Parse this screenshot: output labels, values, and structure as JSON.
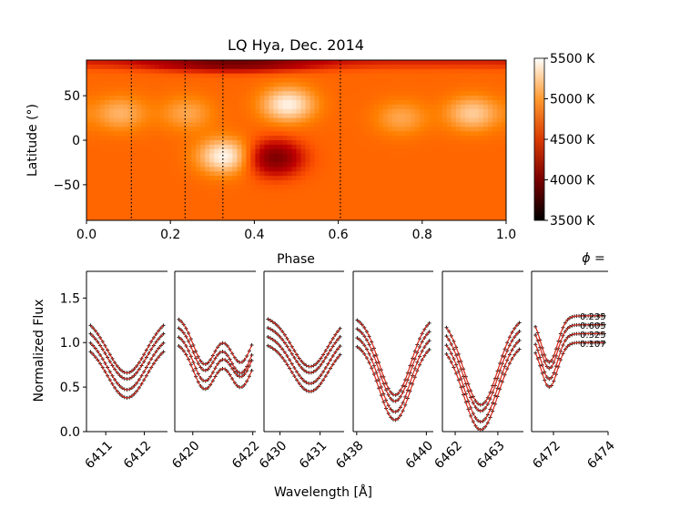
{
  "chart_data": [
    {
      "type": "heatmap",
      "title": "LQ Hya, Dec. 2014",
      "xlabel": "Phase",
      "ylabel": "Latitude (°)",
      "xlim": [
        0.0,
        1.0
      ],
      "ylim": [
        -90,
        90
      ],
      "x_ticks": [
        "0.0",
        "0.2",
        "0.4",
        "0.6",
        "0.8",
        "1.0"
      ],
      "x_tick_values": [
        0.0,
        0.2,
        0.4,
        0.6,
        0.8,
        1.0
      ],
      "y_ticks": [
        "50",
        "0",
        "−50"
      ],
      "y_tick_values": [
        50,
        0,
        -50
      ],
      "observed_phases": [
        0.107,
        0.235,
        0.325,
        0.605
      ],
      "colorbar": {
        "label_unit": "K",
        "ticks": [
          "5500 K",
          "5000 K",
          "4500 K",
          "4000 K",
          "3500 K"
        ],
        "tick_values": [
          5500,
          5000,
          4500,
          4000,
          3500
        ],
        "range": [
          3500,
          5500
        ]
      },
      "background_temperature": 4900,
      "features": [
        {
          "type": "cool",
          "phase": 0.45,
          "latitude": -20,
          "temperature": 4150
        },
        {
          "type": "cool",
          "phase": 0.35,
          "latitude": 85,
          "temperature": 4300
        },
        {
          "type": "hot",
          "phase": 0.33,
          "latitude": -18,
          "temperature": 5480
        },
        {
          "type": "hot",
          "phase": 0.48,
          "latitude": 40,
          "temperature": 5450
        },
        {
          "type": "hot",
          "phase": 0.08,
          "latitude": 30,
          "temperature": 5200
        },
        {
          "type": "hot",
          "phase": 0.24,
          "latitude": 30,
          "temperature": 5150
        },
        {
          "type": "hot",
          "phase": 0.92,
          "latitude": 30,
          "temperature": 5300
        },
        {
          "type": "hot",
          "phase": 0.75,
          "latitude": 25,
          "temperature": 5150
        }
      ]
    },
    {
      "type": "line",
      "xlabel": "Wavelength [Å]",
      "ylabel": "Normalized Flux",
      "ylim": [
        0.0,
        1.8
      ],
      "y_ticks": [
        "0.0",
        "0.5",
        "1.0",
        "1.5"
      ],
      "y_tick_values": [
        0.0,
        0.5,
        1.0,
        1.5
      ],
      "phi_label": "ϕ =",
      "phase_labels": [
        "0.235",
        "0.605",
        "0.325",
        "0.107"
      ],
      "offsets": [
        0.3,
        0.2,
        0.1,
        0.0
      ],
      "panels": [
        {
          "name": "6411",
          "xlim": [
            6410.5,
            6412.6
          ],
          "ticks": [
            "6411",
            "6412"
          ],
          "tick_values": [
            6411,
            6412
          ],
          "center": 6411.55,
          "width": 0.5,
          "depth": 0.62
        },
        {
          "name": "6420",
          "xlim": [
            6419.4,
            6422.1
          ],
          "ticks": [
            "6420",
            "6422"
          ],
          "tick_values": [
            6420,
            6422
          ],
          "center": [
            6420.4,
            6421.6
          ],
          "width": 0.38,
          "depth": [
            0.52,
            0.5
          ]
        },
        {
          "name": "6430",
          "xlim": [
            6429.6,
            6431.6
          ],
          "ticks": [
            "6430",
            "6431"
          ],
          "tick_values": [
            6430,
            6431
          ],
          "center": 6430.75,
          "width": 0.45,
          "depth": 0.55
        },
        {
          "name": "6439",
          "xlim": [
            6437.9,
            6440.2
          ],
          "ticks": [
            "6438",
            "6440"
          ],
          "tick_values": [
            6438,
            6440
          ],
          "center": 6439.1,
          "width": 0.45,
          "depth": 0.87
        },
        {
          "name": "6462",
          "xlim": [
            6461.7,
            6463.6
          ],
          "ticks": [
            "6462",
            "6463"
          ],
          "tick_values": [
            6462,
            6463
          ],
          "center": 6462.6,
          "width": 0.4,
          "depth": 0.98
        },
        {
          "name": "6472",
          "xlim": [
            6471.2,
            6474.0
          ],
          "ticks": [
            "6472",
            "6474"
          ],
          "tick_values": [
            6472,
            6474
          ],
          "center": 6471.85,
          "width": 0.3,
          "depth": 0.5
        }
      ]
    }
  ]
}
